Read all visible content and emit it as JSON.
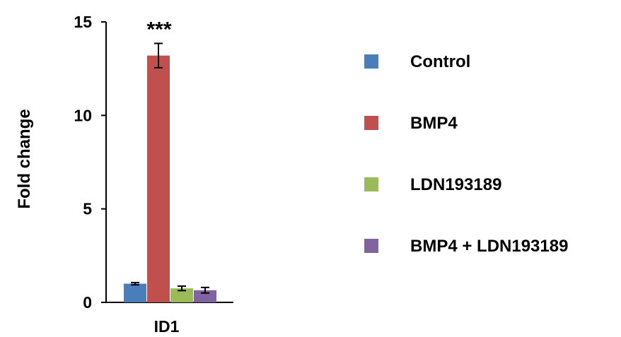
{
  "chart_data": {
    "type": "bar",
    "title": "",
    "xlabel": "",
    "ylabel": "Fold change",
    "ylim": [
      0,
      15
    ],
    "yticks": [
      0,
      5,
      10,
      15
    ],
    "categories": [
      "ID1"
    ],
    "grid": false,
    "legend_position": "right",
    "series": [
      {
        "name": "Control",
        "color": "#4a7ebb",
        "values": [
          1.0
        ],
        "errors": [
          0.06
        ]
      },
      {
        "name": "BMP4",
        "color": "#c0504d",
        "values": [
          13.2
        ],
        "errors": [
          0.65
        ]
      },
      {
        "name": "LDN193189",
        "color": "#9bbb59",
        "values": [
          0.75
        ],
        "errors": [
          0.12
        ]
      },
      {
        "name": "BMP4 + LDN193189",
        "color": "#8064a2",
        "values": [
          0.65
        ],
        "errors": [
          0.15
        ]
      }
    ],
    "annotations": [
      {
        "text": "***",
        "series": "BMP4",
        "category": "ID1"
      }
    ]
  }
}
